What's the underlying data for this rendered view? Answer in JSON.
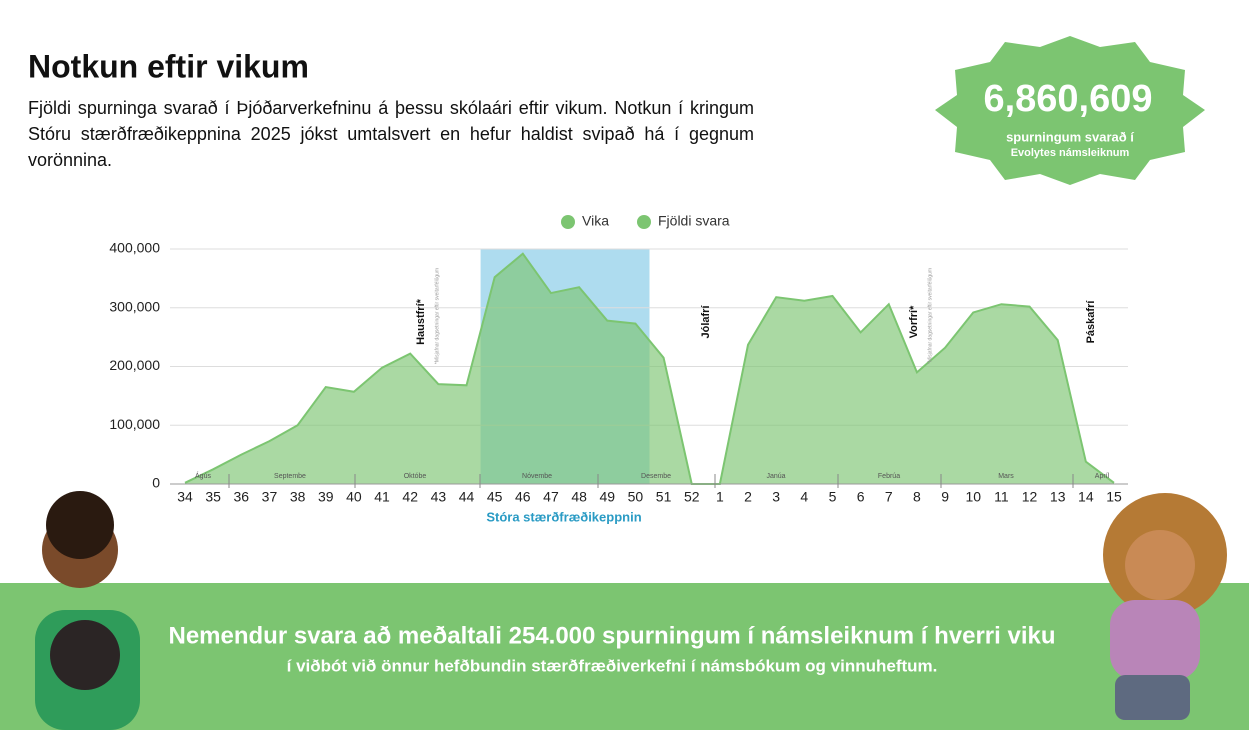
{
  "header": {
    "title": "Notkun eftir vikum",
    "description": "Fjöldi spurninga svarað í Þjóðarverkefninu á þessu skólaári eftir vikum. Notkun í kringum Stóru stærðfræðikeppnina 2025 jókst umtalsvert en hefur haldist svipað há í gegnum vorönnina."
  },
  "badge": {
    "number": "6,860,609",
    "line1": "spurningum svarað í",
    "line2": "Evolytes námsleiknum"
  },
  "chart_data": {
    "type": "area",
    "legend": [
      "Vika",
      "Fjöldi svara"
    ],
    "color": "#7cc571",
    "categories": [
      "34",
      "35",
      "36",
      "37",
      "38",
      "39",
      "40",
      "41",
      "42",
      "43",
      "44",
      "45",
      "46",
      "47",
      "48",
      "49",
      "50",
      "51",
      "52",
      "1",
      "2",
      "3",
      "4",
      "5",
      "6",
      "7",
      "8",
      "9",
      "10",
      "11",
      "12",
      "13",
      "14",
      "15"
    ],
    "values": [
      2000,
      25000,
      50000,
      73000,
      100000,
      165000,
      157000,
      198000,
      222000,
      170000,
      168000,
      352000,
      392000,
      325000,
      335000,
      278000,
      273000,
      215000,
      0,
      0,
      237000,
      318000,
      312000,
      320000,
      258000,
      306000,
      190000,
      232000,
      292000,
      306000,
      302000,
      245000,
      38000,
      2000
    ],
    "ylim": [
      0,
      400000
    ],
    "yticks": [
      0,
      {
        "value": 100000,
        "label": "100,000"
      },
      {
        "value": 200000,
        "label": "200,000"
      },
      {
        "value": 300000,
        "label": "300,000"
      },
      {
        "value": 400000,
        "label": "400,000"
      }
    ],
    "grid": true,
    "months": [
      "Ágús",
      "Septembe",
      "Októbe",
      "Nóvembe",
      "Desembe",
      "Janúa",
      "Febrúa",
      "Mars",
      "Apríl"
    ],
    "annotations": [
      {
        "text": "Haustfrí*",
        "note": "*Misjafnar dagsetningar eftir sveitarfélögum"
      },
      {
        "text": "Jólafrí"
      },
      {
        "text": "Vorfrí*",
        "note": "*Misjafnar dagsetningar eftir sveitarfélögum"
      },
      {
        "text": "Páskafrí"
      }
    ],
    "highlight_label": "Stóra stærðfræðikeppnin"
  },
  "footer": {
    "line1": "Nemendur svara að meðaltali 254.000 spurningum í námsleiknum í hverri viku",
    "line2": "í viðbót við önnur hefðbundin stærðfræðiverkefni í námsbókum og vinnuheftum."
  }
}
